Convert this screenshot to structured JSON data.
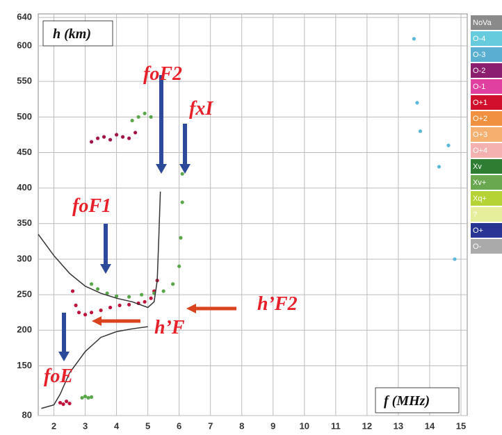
{
  "chart_data": {
    "type": "scatter",
    "x_label": "f (MHz)",
    "y_label": "h (km)",
    "xlim": [
      1.5,
      15.2
    ],
    "ylim": [
      80,
      645
    ],
    "xticks": [
      2,
      3,
      4,
      5,
      6,
      7,
      8,
      9,
      10,
      11,
      12,
      13,
      14,
      15
    ],
    "yticks": [
      80,
      150,
      200,
      250,
      300,
      350,
      400,
      450,
      500,
      550,
      600,
      640
    ],
    "grid": true,
    "annotations": [
      "foF2",
      "fxI",
      "foF1",
      "h’F2",
      "h’F",
      "foE"
    ],
    "legend": [
      {
        "label": "NoVa",
        "color": "#8a8a8a"
      },
      {
        "label": "O-4",
        "color": "#66ccdd"
      },
      {
        "label": "O-3",
        "color": "#5aaed0"
      },
      {
        "label": "O-2",
        "color": "#8b1e6e"
      },
      {
        "label": "O-1",
        "color": "#e040a0"
      },
      {
        "label": "O+1",
        "color": "#d0102c"
      },
      {
        "label": "O+2",
        "color": "#f09040"
      },
      {
        "label": "O+3",
        "color": "#f5b070"
      },
      {
        "label": "O+4",
        "color": "#f5b0b0"
      },
      {
        "label": "Xv",
        "color": "#2e7d32"
      },
      {
        "label": "Xv+",
        "color": "#6aa84f"
      },
      {
        "label": "Xq+",
        "color": "#b5d334"
      },
      {
        "label": "?",
        "color": "#e6ee9c"
      },
      {
        "label": "O+",
        "color": "#283593"
      },
      {
        "label": "O-",
        "color": "#aaaaaa"
      }
    ],
    "series": [
      {
        "style": "points",
        "color": "#c0143c",
        "x": [
          2.6,
          2.7,
          2.8,
          3.0,
          3.2,
          3.5,
          3.8,
          4.1,
          4.4,
          4.7,
          4.9,
          5.1,
          5.2,
          5.3
        ],
        "values": [
          255,
          235,
          225,
          222,
          225,
          228,
          232,
          235,
          236,
          238,
          240,
          245,
          255,
          270
        ]
      },
      {
        "style": "points",
        "color": "#c0143c",
        "x": [
          2.2,
          2.3,
          2.4,
          2.5
        ],
        "values": [
          98,
          96,
          100,
          97
        ]
      },
      {
        "style": "points",
        "color": "#a0144a",
        "x": [
          3.2,
          3.4,
          3.6,
          3.8,
          4.0,
          4.2,
          4.4,
          4.6
        ],
        "values": [
          465,
          470,
          472,
          468,
          475,
          472,
          470,
          478
        ]
      },
      {
        "style": "points",
        "color": "#5aa64a",
        "x": [
          3.2,
          3.4,
          3.7,
          4.0,
          4.4,
          4.8,
          5.2,
          5.5,
          5.8,
          6.0,
          6.05,
          6.1,
          6.1
        ],
        "values": [
          265,
          258,
          252,
          248,
          247,
          250,
          252,
          255,
          265,
          290,
          330,
          380,
          420
        ]
      },
      {
        "style": "points",
        "color": "#5aa64a",
        "x": [
          2.9,
          3.0,
          3.1,
          3.2
        ],
        "values": [
          105,
          107,
          105,
          106
        ]
      },
      {
        "style": "points",
        "color": "#5aa64a",
        "x": [
          4.5,
          4.7,
          4.9,
          5.1
        ],
        "values": [
          495,
          500,
          505,
          500
        ]
      },
      {
        "style": "points",
        "color": "#5ab8d8",
        "x": [
          13.5,
          13.6,
          13.7,
          14.3,
          14.6,
          14.8
        ],
        "values": [
          610,
          520,
          480,
          430,
          460,
          300
        ]
      },
      {
        "style": "line",
        "color": "#333333",
        "x": [
          1.5,
          2,
          2.5,
          3,
          3.5,
          4,
          4.5,
          5,
          5.2,
          5.3,
          5.35,
          5.4
        ],
        "values": [
          335,
          305,
          280,
          262,
          252,
          245,
          240,
          232,
          240,
          270,
          330,
          395
        ]
      },
      {
        "style": "line",
        "color": "#333333",
        "x": [
          1.6,
          2,
          2.2,
          2.5,
          3,
          3.5,
          4,
          4.5,
          5
        ],
        "values": [
          90,
          95,
          110,
          140,
          170,
          190,
          198,
          202,
          205
        ]
      }
    ]
  }
}
